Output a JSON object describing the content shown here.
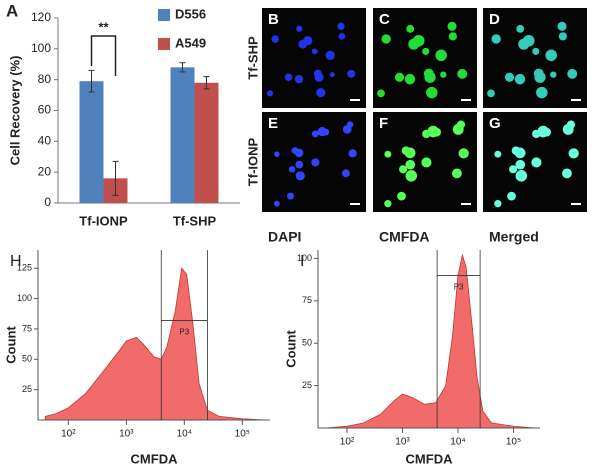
{
  "chart_data": [
    {
      "type": "bar",
      "panel": "A",
      "ylabel": "Cell Recovery (%)",
      "annotation": "**",
      "categories": [
        "Tf-IONP",
        "Tf-SHP"
      ],
      "series": [
        {
          "name": "D556",
          "color": "#4f81bd",
          "values": [
            79,
            88
          ],
          "errors": [
            7,
            3
          ]
        },
        {
          "name": "A549",
          "color": "#c0504d",
          "values": [
            16,
            78
          ],
          "errors": [
            11,
            4
          ]
        }
      ],
      "ylim": [
        0,
        120
      ],
      "yticks": [
        0,
        20,
        40,
        60,
        80,
        100,
        120
      ]
    },
    {
      "type": "area",
      "panel": "H",
      "ylabel": "Count",
      "xlabel": "CMFDA",
      "color": "#f26b6b",
      "xlog": true,
      "x": [
        40,
        60,
        100,
        200,
        400,
        700,
        1000,
        1500,
        2000,
        3000,
        4000,
        5000,
        7000,
        9000,
        11000,
        14000,
        18000,
        25000,
        40000,
        100000,
        250000
      ],
      "values": [
        3,
        5,
        10,
        22,
        40,
        55,
        65,
        68,
        62,
        52,
        50,
        60,
        90,
        125,
        120,
        80,
        30,
        8,
        3,
        1,
        0
      ],
      "xlim": [
        30,
        300000
      ],
      "ylim": [
        0,
        140
      ],
      "xticks": [
        {
          "value": 100,
          "label": "10²"
        },
        {
          "value": 1000,
          "label": "10³"
        },
        {
          "value": 10000,
          "label": "10⁴"
        },
        {
          "value": 100000,
          "label": "10⁵"
        }
      ],
      "yticks": [
        25,
        50,
        75,
        100,
        125
      ],
      "gate": {
        "label": "P3",
        "x": [
          4000,
          25000
        ],
        "y": 82
      }
    },
    {
      "type": "area",
      "panel": "I",
      "ylabel": "Count",
      "xlabel": "CMFDA",
      "color": "#f26b6b",
      "xlog": true,
      "x": [
        40,
        100,
        200,
        400,
        700,
        1000,
        1500,
        2500,
        4000,
        6000,
        8000,
        10000,
        12000,
        14000,
        18000,
        22000,
        28000,
        40000,
        100000,
        250000
      ],
      "values": [
        0,
        1,
        3,
        8,
        16,
        20,
        18,
        14,
        15,
        25,
        55,
        90,
        102,
        95,
        60,
        30,
        10,
        3,
        1,
        0
      ],
      "xlim": [
        30,
        300000
      ],
      "ylim": [
        0,
        105
      ],
      "xticks": [
        {
          "value": 100,
          "label": "10²"
        },
        {
          "value": 1000,
          "label": "10³"
        },
        {
          "value": 10000,
          "label": "10⁴"
        },
        {
          "value": 100000,
          "label": "10⁵"
        }
      ],
      "yticks": [
        25,
        50,
        75,
        100
      ],
      "gate": {
        "label": "P3",
        "x": [
          4200,
          25000
        ],
        "y": 90
      }
    }
  ],
  "micrographs": {
    "panels": [
      "B",
      "C",
      "D",
      "E",
      "F",
      "G"
    ],
    "rows": [
      "Tf-SHP",
      "Tf-IONP"
    ],
    "columns": [
      "DAPI",
      "CMFDA",
      "Merged"
    ]
  }
}
